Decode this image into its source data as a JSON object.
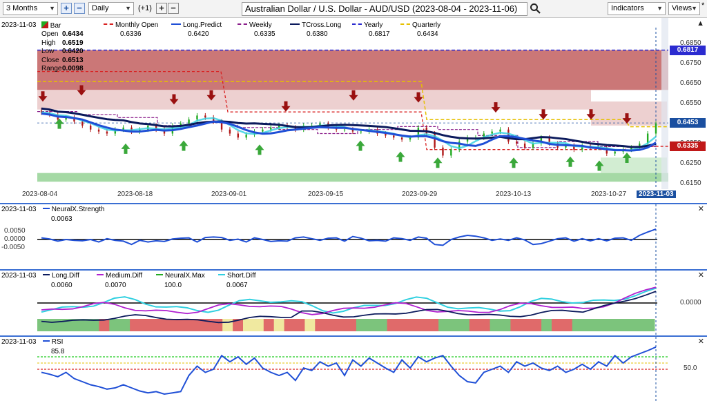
{
  "toolbar": {
    "range": "3 Months",
    "interval": "Daily",
    "offset": "(+1)",
    "title": "Australian Dollar / U.S. Dollar - AUD/USD (2023-08-04 - 2023-11-06)",
    "indicators": "Indicators",
    "views": "Views"
  },
  "price_pane": {
    "date": "2023-11-03",
    "bar_label": "Bar",
    "ohlc": [
      {
        "k": "Open",
        "v": "0.6434"
      },
      {
        "k": "High",
        "v": "0.6519"
      },
      {
        "k": "Low",
        "v": "0.6420"
      },
      {
        "k": "Close",
        "v": "0.6513"
      },
      {
        "k": "Range",
        "v": "0.0098"
      }
    ],
    "indicators": [
      {
        "name": "Monthly Open",
        "value": "0.6336",
        "color": "#d92020"
      },
      {
        "name": "Long.Predict",
        "value": "0.6420",
        "color": "#1f4fd6"
      },
      {
        "name": "Weekly",
        "value": "0.6335",
        "color": "#8a1d8a"
      },
      {
        "name": "TCross.Long",
        "value": "0.6380",
        "color": "#0b1a5c"
      },
      {
        "name": "Yearly",
        "value": "0.6817",
        "color": "#2b2bd0"
      },
      {
        "name": "Quarterly",
        "value": "0.6434",
        "color": "#e6c000"
      }
    ],
    "axis_ticks": [
      "0.6850",
      "0.6750",
      "0.6650",
      "0.6550",
      "0.6350",
      "0.6250",
      "0.6150"
    ],
    "tags": [
      {
        "text": "0.6817",
        "color": "#2b2bd0"
      },
      {
        "text": "0.6453",
        "color": "#1a4fa0"
      },
      {
        "text": "0.6335",
        "color": "#c01818"
      }
    ],
    "x_labels": [
      "2023-08-04",
      "2023-08-18",
      "2023-09-01",
      "2023-09-15",
      "2023-09-29",
      "2023-10-13",
      "2023-10-27",
      "2023-11-03"
    ]
  },
  "strength_pane": {
    "date": "2023-11-03",
    "name": "NeuralX.Strength",
    "value": "0.0063",
    "axis_ticks": [
      "0.0050",
      "0.0000",
      "-0.0050"
    ]
  },
  "diff_pane": {
    "date": "2023-11-03",
    "indicators": [
      {
        "name": "Long.Diff",
        "value": "0.0060",
        "color": "#0b1a5c"
      },
      {
        "name": "Medium.Diff",
        "value": "0.0070",
        "color": "#b020d0"
      },
      {
        "name": "NeuralX.Max",
        "value": "100.0",
        "color": "#22aa22"
      },
      {
        "name": "Short.Diff",
        "value": "0.0067",
        "color": "#30d0e0"
      }
    ],
    "axis_ticks": [
      "0.0000"
    ]
  },
  "rsi_pane": {
    "date": "2023-11-03",
    "name": "RSI",
    "value": "85.8",
    "axis_ticks": [
      "50.0"
    ]
  }
}
